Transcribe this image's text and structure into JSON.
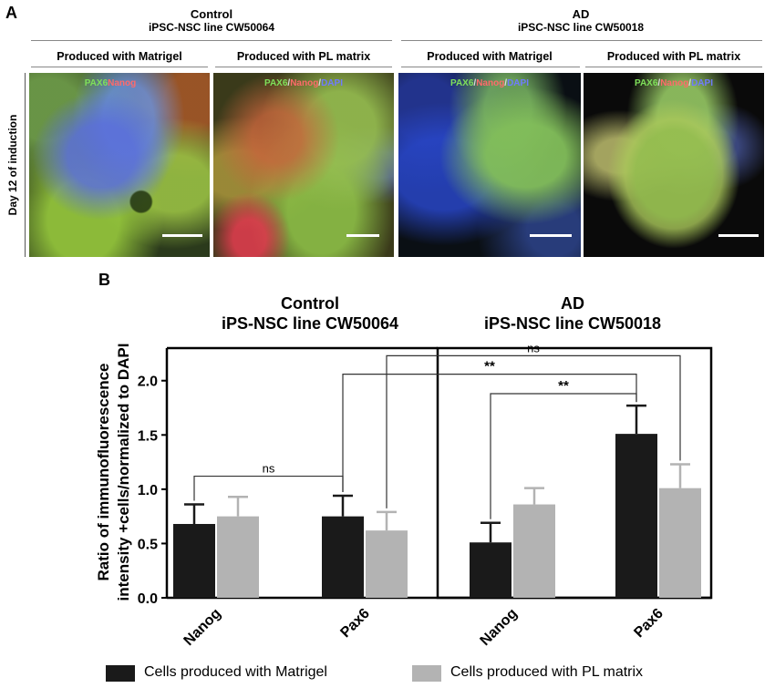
{
  "panel_a": {
    "letter": "A",
    "groups": [
      {
        "title": "Control",
        "subtitle": "iPSC-NSC line CW50064"
      },
      {
        "title": "AD",
        "subtitle": "iPSC-NSC line CW50018"
      }
    ],
    "conditions": [
      "Produced with Matrigel",
      "Produced with PL matrix",
      "Produced with Matrigel",
      "Produced with PL matrix"
    ],
    "row_label": "Day 12 of induction",
    "stain": {
      "pax6": "PAX6",
      "sep": "/",
      "nanog": "Nanog",
      "dapi": "DAPI"
    }
  },
  "panel_b": {
    "letter": "B",
    "groups": [
      {
        "title": "Control",
        "subtitle": "iPS-NSC line CW50064"
      },
      {
        "title": "AD",
        "subtitle": "iPS-NSC line CW50018"
      }
    ],
    "ylabel_line1": "Ratio of immunofluorescence",
    "ylabel_line2": "intensity +cells/normalized to DAPI",
    "legend": [
      {
        "label": "Cells produced with Matrigel",
        "color": "#1a1a1a"
      },
      {
        "label": "Cells produced with PL matrix",
        "color": "#b3b3b3"
      }
    ]
  },
  "chart_data": {
    "type": "bar",
    "ylim": [
      0,
      2.3
    ],
    "yticks": [
      "0.0",
      "0.5",
      "1.0",
      "1.5",
      "2.0"
    ],
    "categories": [
      "Nanog",
      "Pax6",
      "Nanog",
      "Pax6"
    ],
    "series": [
      {
        "name": "Cells produced with Matrigel",
        "color": "#1a1a1a",
        "values": [
          0.68,
          0.75,
          0.51,
          1.51
        ],
        "errors": [
          0.18,
          0.19,
          0.18,
          0.26
        ]
      },
      {
        "name": "Cells produced with PL matrix",
        "color": "#b3b3b3",
        "values": [
          0.75,
          0.62,
          0.86,
          1.01
        ],
        "errors": [
          0.18,
          0.17,
          0.15,
          0.22
        ]
      }
    ],
    "annotations": [
      {
        "text": "ns",
        "from": [
          0,
          0
        ],
        "to": [
          1,
          0
        ]
      },
      {
        "text": "ns",
        "from": [
          1,
          1
        ],
        "to": [
          3,
          1
        ]
      },
      {
        "text": "**",
        "from": [
          1,
          0
        ],
        "to": [
          3,
          0
        ]
      },
      {
        "text": "**",
        "from": [
          2,
          0
        ],
        "to": [
          3,
          0
        ]
      }
    ],
    "grid": false,
    "legend_position": "bottom"
  }
}
